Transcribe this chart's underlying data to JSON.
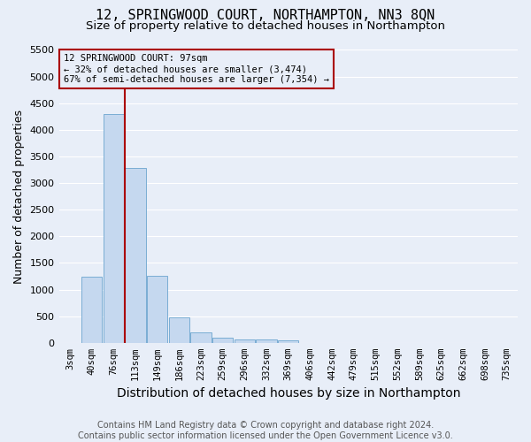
{
  "title1": "12, SPRINGWOOD COURT, NORTHAMPTON, NN3 8QN",
  "title2": "Size of property relative to detached houses in Northampton",
  "xlabel": "Distribution of detached houses by size in Northampton",
  "ylabel": "Number of detached properties",
  "footer1": "Contains HM Land Registry data © Crown copyright and database right 2024.",
  "footer2": "Contains public sector information licensed under the Open Government Licence v3.0.",
  "categories": [
    "3sqm",
    "40sqm",
    "76sqm",
    "113sqm",
    "149sqm",
    "186sqm",
    "223sqm",
    "259sqm",
    "296sqm",
    "332sqm",
    "369sqm",
    "406sqm",
    "442sqm",
    "479sqm",
    "515sqm",
    "552sqm",
    "589sqm",
    "625sqm",
    "662sqm",
    "698sqm",
    "735sqm"
  ],
  "values": [
    0,
    1250,
    4300,
    3280,
    1260,
    470,
    200,
    90,
    60,
    55,
    50,
    0,
    0,
    0,
    0,
    0,
    0,
    0,
    0,
    0,
    0
  ],
  "bar_color": "#c5d8ef",
  "bar_edge_color": "#7aadd4",
  "vline_color": "#aa0000",
  "vline_pos": 2.5,
  "annotation_text_line1": "12 SPRINGWOOD COURT: 97sqm",
  "annotation_text_line2": "← 32% of detached houses are smaller (3,474)",
  "annotation_text_line3": "67% of semi-detached houses are larger (7,354) →",
  "annotation_box_edge_color": "#aa0000",
  "ylim": [
    0,
    5500
  ],
  "yticks": [
    0,
    500,
    1000,
    1500,
    2000,
    2500,
    3000,
    3500,
    4000,
    4500,
    5000,
    5500
  ],
  "bg_color": "#e8eef8",
  "grid_color": "#ffffff",
  "title1_fontsize": 11,
  "title2_fontsize": 9.5,
  "xlabel_fontsize": 10,
  "ylabel_fontsize": 9,
  "tick_fontsize": 7.5,
  "footer_fontsize": 7
}
